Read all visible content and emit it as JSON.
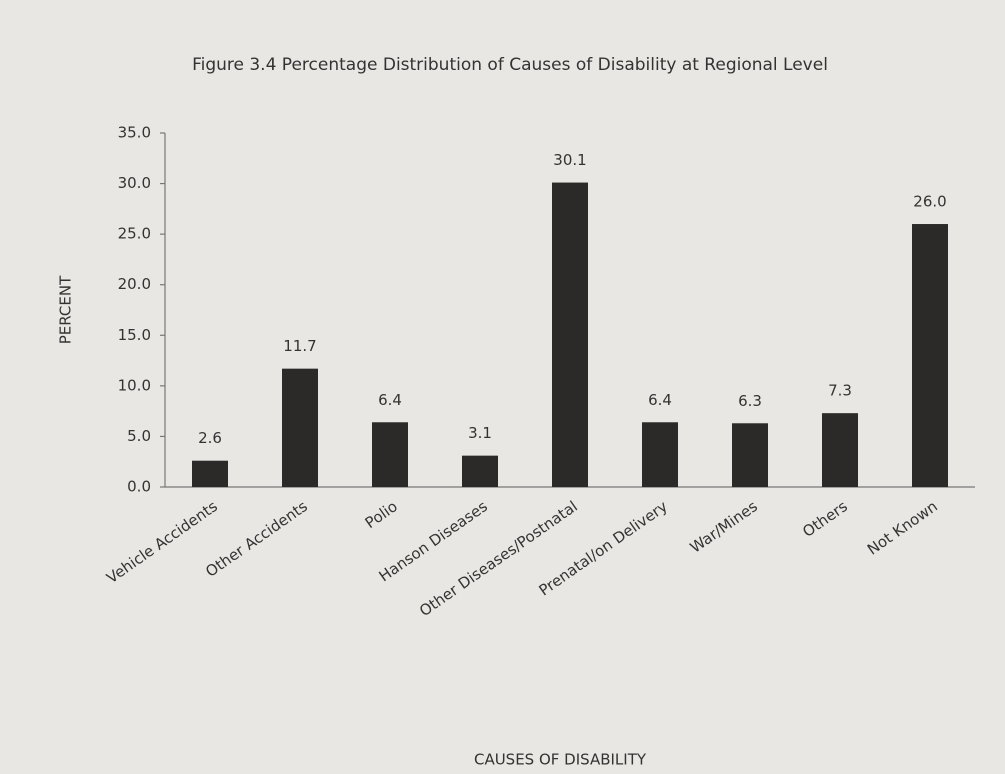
{
  "chart_data": {
    "type": "bar",
    "title": "Figure 3.4 Percentage Distribution of Causes of Disability at Regional Level",
    "categories": [
      "Vehicle Accidents",
      "Other Accidents",
      "Polio",
      "Hanson Diseases",
      "Other Diseases/Postnatal",
      "Prenatal/on Delivery",
      "War/Mines",
      "Others",
      "Not Known"
    ],
    "values": [
      2.6,
      11.7,
      6.4,
      3.1,
      30.1,
      6.4,
      6.3,
      7.3,
      26.0
    ],
    "value_labels": [
      "2.6",
      "11.7",
      "6.4",
      "3.1",
      "30.1",
      "6.4",
      "6.3",
      "7.3",
      "26.0"
    ],
    "color": "#2b2a28",
    "x_label": "CAUSES OF DISABILITY",
    "y_label": "PERCENT",
    "ylim": [
      0,
      35
    ],
    "yticks": [
      {
        "value": 0,
        "label": "0.0"
      },
      {
        "value": 5,
        "label": "5.0"
      },
      {
        "value": 10,
        "label": "10.0"
      },
      {
        "value": 15,
        "label": "15.0"
      },
      {
        "value": 20,
        "label": "20.0"
      },
      {
        "value": 25,
        "label": "25.0"
      },
      {
        "value": 30,
        "label": "30.0"
      },
      {
        "value": 35,
        "label": "35.0"
      }
    ],
    "grid": false
  }
}
